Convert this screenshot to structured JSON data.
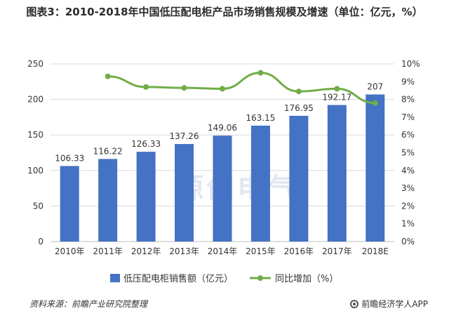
{
  "title": "图表3：2010-2018年中国低压配电柜产品市场销售规模及增速（单位：亿元，%）",
  "source": "资料来源：前瞻产业研究院整理",
  "brand": "前瞻经济学人APP",
  "watermark": "源创电气",
  "colors": {
    "bar": "#4472C4",
    "line": "#70AD47",
    "grid": "#D9D9D9",
    "axis": "#BFBFBF"
  },
  "chart_data": {
    "type": "bar",
    "categories": [
      "2010年",
      "2011年",
      "2012年",
      "2013年",
      "2014年",
      "2015年",
      "2016年",
      "2017年",
      "2018E"
    ],
    "series": [
      {
        "name": "低压配电柜销售额（亿元）",
        "type": "bar",
        "axis": "left",
        "values": [
          106.33,
          116.22,
          126.33,
          137.26,
          149.06,
          163.15,
          176.95,
          192.17,
          207
        ],
        "labels": [
          "106.33",
          "116.22",
          "126.33",
          "137.26",
          "149.06",
          "163.15",
          "176.95",
          "192.17",
          "207"
        ]
      },
      {
        "name": "同比增加（%）",
        "type": "line",
        "axis": "right",
        "values": [
          null,
          9.3,
          8.7,
          8.65,
          8.6,
          9.5,
          8.45,
          8.6,
          7.8
        ]
      }
    ],
    "y_left": {
      "min": 0,
      "max": 250,
      "ticks": [
        "0",
        "50",
        "100",
        "150",
        "200",
        "250"
      ]
    },
    "y_right": {
      "min": 0,
      "max": 10,
      "ticks": [
        "0%",
        "1%",
        "2%",
        "3%",
        "4%",
        "5%",
        "6%",
        "7%",
        "8%",
        "9%",
        "10%"
      ]
    },
    "grid": true,
    "legend_position": "bottom"
  }
}
